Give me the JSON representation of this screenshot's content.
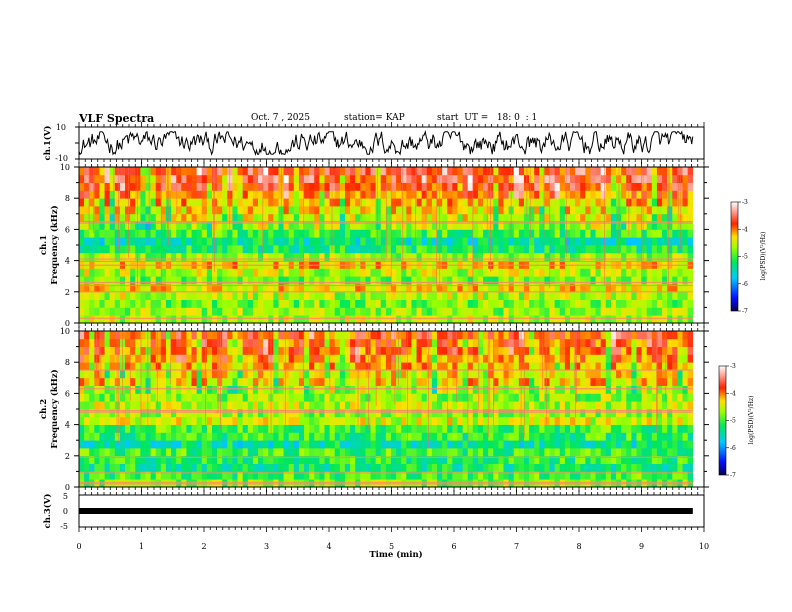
{
  "header": {
    "title": "VLF Spectra",
    "date": "Oct. 7 , 2025",
    "station": "station= KAP",
    "start": "start  UT =   18: 0  : 1"
  },
  "panels": {
    "ch1_wave": {
      "ylabel": "ch.1(V)",
      "ymax_label": "10",
      "ymin_label": "-10"
    },
    "spec1": {
      "ylabel_line1": "ch.1",
      "ylabel_line2": "Frequency  (kHz)"
    },
    "spec2": {
      "ylabel_line1": "ch.2",
      "ylabel_line2": "Frequency  (kHz)"
    },
    "ch3_wave": {
      "ylabel": "ch.3(V)",
      "ymax_label": "5",
      "ymid_label": "0",
      "ymin_label": "-5"
    }
  },
  "colorbar": {
    "label": "log(PSD)(V²/Hz)",
    "ticks": [
      "-3",
      "-4",
      "-5",
      "-6",
      "-7"
    ]
  },
  "colors": {
    "cmap": [
      "#1a006e",
      "#0010ff",
      "#00c8ff",
      "#00e85a",
      "#9cff00",
      "#ffe000",
      "#ff2400",
      "#ffffff"
    ]
  },
  "chart_data": {
    "type": "heatmap",
    "title": "VLF Spectra",
    "xlabel": "Time  (min)",
    "xlim": [
      0,
      10
    ],
    "x_ticks": [
      "0",
      "1",
      "2",
      "3",
      "4",
      "5",
      "6",
      "7",
      "8",
      "9",
      "10"
    ],
    "data_end_min": 9.82,
    "ylabel": "Frequency  (kHz)",
    "ylim": [
      0,
      10
    ],
    "y_ticks": [
      "0",
      "2",
      "4",
      "6",
      "8",
      "10"
    ],
    "zlim": [
      -7,
      -3
    ],
    "zlabel": "log(PSD)(V²/Hz)",
    "channels": [
      {
        "name": "ch.1",
        "freq_khz": [
          0.25,
          0.75,
          1.25,
          1.75,
          2.25,
          2.75,
          3.25,
          3.75,
          4.25,
          4.75,
          5.25,
          5.75,
          6.25,
          6.75,
          7.25,
          7.75,
          8.25,
          8.75,
          9.25,
          9.75
        ],
        "typical_log_psd": [
          -4.6,
          -4.7,
          -4.8,
          -4.6,
          -4.3,
          -4.8,
          -4.6,
          -4.2,
          -4.7,
          -5.2,
          -5.4,
          -5.0,
          -4.6,
          -4.4,
          -4.3,
          -4.1,
          -3.9,
          -3.7,
          -3.6,
          -3.6
        ],
        "lines_khz": [
          0.3,
          2.0,
          2.4,
          2.6,
          3.7,
          3.95,
          4.1,
          6.4,
          6.5
        ]
      },
      {
        "name": "ch.2",
        "freq_khz": [
          0.25,
          0.75,
          1.25,
          1.75,
          2.25,
          2.75,
          3.25,
          3.75,
          4.25,
          4.75,
          5.25,
          5.75,
          6.25,
          6.75,
          7.25,
          7.75,
          8.25,
          8.75,
          9.25,
          9.75
        ],
        "typical_log_psd": [
          -4.8,
          -5.0,
          -5.2,
          -5.1,
          -5.0,
          -5.4,
          -5.1,
          -5.0,
          -4.5,
          -4.7,
          -4.6,
          -4.7,
          -4.6,
          -4.2,
          -4.3,
          -4.1,
          -4.0,
          -3.9,
          -3.9,
          -3.8
        ],
        "lines_khz": [
          0.2,
          0.3,
          0.9,
          1.9,
          4.8,
          4.9,
          6.3,
          7.5
        ]
      }
    ],
    "waveforms": [
      {
        "name": "ch.1",
        "ylim": [
          -10,
          10
        ],
        "ylabel": "ch.1(V)",
        "amplitude_v": [
          -7,
          7
        ]
      },
      {
        "name": "ch.3",
        "ylim": [
          -5,
          5
        ],
        "ylabel": "ch.3(V)",
        "value_v": [
          -0.5,
          0.5
        ]
      }
    ]
  }
}
